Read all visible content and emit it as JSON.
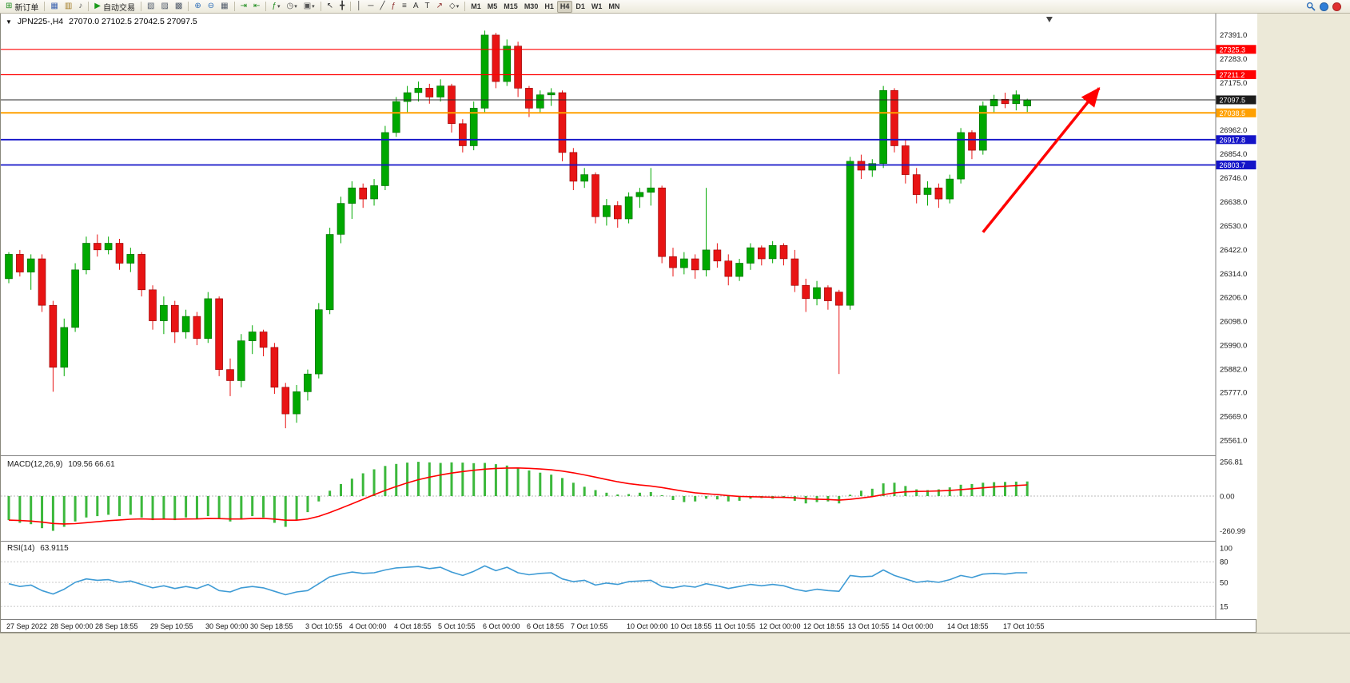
{
  "toolbar": {
    "groups": [
      [
        {
          "name": "new-order-button",
          "glyph": "⊞",
          "glyph_color": "#1a8a1a",
          "label": "新订单"
        }
      ],
      [
        {
          "name": "charts-icon",
          "glyph": "▦",
          "glyph_color": "#3a62b0"
        },
        {
          "name": "history-center-icon",
          "glyph": "▥",
          "glyph_color": "#a07820"
        },
        {
          "name": "sound-alert-icon",
          "glyph": "♪",
          "glyph_color": "#555555"
        }
      ],
      [
        {
          "name": "autotrading-button",
          "glyph": "▶",
          "glyph_color": "#1a9a1a",
          "label": "自动交易"
        }
      ],
      [
        {
          "name": "tile-windows-icon",
          "glyph": "▧",
          "glyph_color": "#505a6a"
        },
        {
          "name": "cascade-windows-icon",
          "glyph": "▨",
          "glyph_color": "#505a6a"
        },
        {
          "name": "arrange-windows-icon",
          "glyph": "▩",
          "glyph_color": "#505a6a"
        }
      ],
      [
        {
          "name": "zoom-in-icon",
          "glyph": "⊕",
          "glyph_color": "#2b6cb8"
        },
        {
          "name": "zoom-out-icon",
          "glyph": "⊖",
          "glyph_color": "#2b6cb8"
        },
        {
          "name": "tile-grid-icon",
          "glyph": "▦",
          "glyph_color": "#505a6a"
        }
      ],
      [
        {
          "name": "auto-scroll-icon",
          "glyph": "⇥",
          "glyph_color": "#1a8a1a"
        },
        {
          "name": "chart-shift-icon",
          "glyph": "⇤",
          "glyph_color": "#1a8a1a"
        }
      ],
      [
        {
          "name": "indicators-add-icon",
          "glyph": "ƒ",
          "glyph_color": "#1a8a1a",
          "dropdown": true
        },
        {
          "name": "periods-icon",
          "glyph": "◷",
          "glyph_color": "#555555",
          "dropdown": true
        },
        {
          "name": "templates-icon",
          "glyph": "▣",
          "glyph_color": "#555555",
          "dropdown": true
        }
      ],
      [
        {
          "name": "cursor-icon",
          "glyph": "↖",
          "glyph_color": "#333333"
        },
        {
          "name": "crosshair-icon",
          "glyph": "╋",
          "glyph_color": "#333333"
        }
      ],
      [
        {
          "name": "vertical-line-icon",
          "glyph": "│",
          "glyph_color": "#333333"
        },
        {
          "name": "horizontal-line-icon",
          "glyph": "─",
          "glyph_color": "#333333"
        },
        {
          "name": "trendline-icon",
          "glyph": "╱",
          "glyph_color": "#333333"
        },
        {
          "name": "fibonacci-icon",
          "glyph": "ƒ",
          "glyph_color": "#8a2a2a"
        },
        {
          "name": "channel-icon",
          "glyph": "≡",
          "glyph_color": "#333333"
        },
        {
          "name": "text-icon",
          "glyph": "A",
          "glyph_color": "#333333"
        },
        {
          "name": "text-label-icon",
          "glyph": "T",
          "glyph_color": "#333333"
        },
        {
          "name": "arrows-icon",
          "glyph": "↗",
          "glyph_color": "#8a2a2a"
        },
        {
          "name": "shapes-icon",
          "glyph": "◇",
          "glyph_color": "#333333",
          "dropdown": true
        }
      ],
      [
        {
          "name": "tf-m1",
          "label": "M1",
          "tf": true
        },
        {
          "name": "tf-m5",
          "label": "M5",
          "tf": true
        },
        {
          "name": "tf-m15",
          "label": "M15",
          "tf": true
        },
        {
          "name": "tf-m30",
          "label": "M30",
          "tf": true
        },
        {
          "name": "tf-h1",
          "label": "H1",
          "tf": true
        },
        {
          "name": "tf-h4",
          "label": "H4",
          "tf": true,
          "active": true
        },
        {
          "name": "tf-d1",
          "label": "D1",
          "tf": true
        },
        {
          "name": "tf-w1",
          "label": "W1",
          "tf": true
        },
        {
          "name": "tf-mn",
          "label": "MN",
          "tf": true
        }
      ]
    ],
    "right_icons": [
      {
        "name": "search-symbol-icon",
        "svg": "magnifier"
      },
      {
        "name": "community-icon",
        "dot": "#2F7ED8"
      },
      {
        "name": "live-update-icon",
        "dot": "#E03030"
      }
    ]
  },
  "chart_header": {
    "collapse_glyph": "▼",
    "symbol_period": "JPN225-,H4",
    "ohlc": "27070.0 27102.5 27042.5 27097.5"
  },
  "indicators": {
    "macd_title": "MACD(12,26,9)",
    "macd_values": "109.56 66.61",
    "rsi_title": "RSI(14)",
    "rsi_value": "63.9115"
  },
  "chart_data": [
    {
      "type": "candlestick",
      "symbol": "JPN225-",
      "period": "H4",
      "ylim": [
        25500,
        27440
      ],
      "up_color": "#00A800",
      "up_border": "#006600",
      "down_color": "#E81414",
      "down_border": "#8F0000",
      "y_axis_labels": [
        "27391.0",
        "27283.0",
        "27175.0",
        "26962.0",
        "26854.0",
        "26746.0",
        "26638.0",
        "26530.0",
        "26422.0",
        "26314.0",
        "26206.0",
        "26098.0",
        "25990.0",
        "25882.0",
        "25777.0",
        "25669.0",
        "25561.0"
      ],
      "levels": [
        {
          "price": 27325.3,
          "label": "27325.3",
          "color": "#FF0000",
          "width": 1.2
        },
        {
          "price": 27211.2,
          "label": "27211.2",
          "color": "#FF0000",
          "width": 1.2
        },
        {
          "price": 27097.5,
          "label": "27097.5",
          "color": "#2a2a2a",
          "width": 1,
          "role": "current-price"
        },
        {
          "price": 27038.5,
          "label": "27038.5",
          "color": "#FFA000",
          "width": 2
        },
        {
          "price": 26917.8,
          "label": "26917.8",
          "color": "#1414C8",
          "width": 1.8
        },
        {
          "price": 26803.7,
          "label": "26803.7",
          "color": "#1414C8",
          "width": 1.8
        }
      ],
      "candles": [
        [
          26290,
          26410,
          26270,
          26400
        ],
        [
          26400,
          26420,
          26300,
          26320
        ],
        [
          26320,
          26400,
          26240,
          26380
        ],
        [
          26380,
          26400,
          26140,
          26170
        ],
        [
          26170,
          26190,
          25780,
          25890
        ],
        [
          25890,
          26110,
          25850,
          26070
        ],
        [
          26070,
          26360,
          26050,
          26330
        ],
        [
          26330,
          26480,
          26310,
          26450
        ],
        [
          26450,
          26490,
          26390,
          26420
        ],
        [
          26420,
          26480,
          26400,
          26450
        ],
        [
          26450,
          26470,
          26330,
          26360
        ],
        [
          26360,
          26430,
          26320,
          26400
        ],
        [
          26400,
          26410,
          26210,
          26240
        ],
        [
          26240,
          26260,
          26060,
          26100
        ],
        [
          26100,
          26210,
          26040,
          26170
        ],
        [
          26170,
          26190,
          26000,
          26050
        ],
        [
          26050,
          26150,
          26020,
          26120
        ],
        [
          26120,
          26140,
          25990,
          26020
        ],
        [
          26020,
          26230,
          26000,
          26200
        ],
        [
          26200,
          26210,
          25850,
          25880
        ],
        [
          25880,
          25930,
          25760,
          25830
        ],
        [
          25830,
          26040,
          25800,
          26010
        ],
        [
          26010,
          26080,
          25950,
          26050
        ],
        [
          26050,
          26060,
          25940,
          25980
        ],
        [
          25980,
          26000,
          25770,
          25800
        ],
        [
          25800,
          25820,
          25615,
          25680
        ],
        [
          25680,
          25810,
          25640,
          25780
        ],
        [
          25780,
          25880,
          25740,
          25860
        ],
        [
          25860,
          26180,
          25840,
          26150
        ],
        [
          26150,
          26520,
          26130,
          26490
        ],
        [
          26490,
          26660,
          26450,
          26630
        ],
        [
          26630,
          26730,
          26560,
          26700
        ],
        [
          26700,
          26720,
          26610,
          26650
        ],
        [
          26650,
          26740,
          26620,
          26710
        ],
        [
          26710,
          26980,
          26690,
          26950
        ],
        [
          26950,
          27110,
          26930,
          27090
        ],
        [
          27090,
          27160,
          27040,
          27130
        ],
        [
          27130,
          27180,
          27090,
          27150
        ],
        [
          27150,
          27170,
          27080,
          27110
        ],
        [
          27110,
          27190,
          27090,
          27160
        ],
        [
          27160,
          27170,
          26950,
          26990
        ],
        [
          26990,
          27010,
          26860,
          26890
        ],
        [
          26890,
          27090,
          26870,
          27060
        ],
        [
          27060,
          27410,
          27040,
          27390
        ],
        [
          27390,
          27400,
          27150,
          27180
        ],
        [
          27180,
          27370,
          27160,
          27340
        ],
        [
          27340,
          27360,
          27110,
          27150
        ],
        [
          27150,
          27160,
          27020,
          27060
        ],
        [
          27060,
          27140,
          27040,
          27120
        ],
        [
          27120,
          27150,
          27070,
          27130
        ],
        [
          27130,
          27140,
          26820,
          26860
        ],
        [
          26860,
          26880,
          26690,
          26730
        ],
        [
          26730,
          26790,
          26700,
          26760
        ],
        [
          26760,
          26770,
          26540,
          26570
        ],
        [
          26570,
          26650,
          26530,
          26620
        ],
        [
          26620,
          26640,
          26520,
          26560
        ],
        [
          26560,
          26680,
          26540,
          26660
        ],
        [
          26660,
          26700,
          26610,
          26680
        ],
        [
          26680,
          26790,
          26620,
          26700
        ],
        [
          26700,
          26710,
          26360,
          26390
        ],
        [
          26390,
          26430,
          26300,
          26340
        ],
        [
          26340,
          26410,
          26310,
          26380
        ],
        [
          26380,
          26400,
          26290,
          26330
        ],
        [
          26330,
          26700,
          26300,
          26420
        ],
        [
          26420,
          26450,
          26340,
          26370
        ],
        [
          26370,
          26400,
          26260,
          26300
        ],
        [
          26300,
          26380,
          26280,
          26360
        ],
        [
          26360,
          26450,
          26330,
          26430
        ],
        [
          26430,
          26440,
          26350,
          26380
        ],
        [
          26380,
          26460,
          26360,
          26440
        ],
        [
          26440,
          26450,
          26350,
          26380
        ],
        [
          26380,
          26420,
          26230,
          26260
        ],
        [
          26260,
          26290,
          26140,
          26200
        ],
        [
          26200,
          26280,
          26170,
          26250
        ],
        [
          26250,
          26260,
          26150,
          26190
        ],
        [
          26230,
          26240,
          25860,
          26170
        ],
        [
          26170,
          26840,
          26150,
          26820
        ],
        [
          26820,
          26850,
          26740,
          26780
        ],
        [
          26780,
          26830,
          26750,
          26810
        ],
        [
          26810,
          27160,
          26790,
          27140
        ],
        [
          27140,
          27150,
          26860,
          26890
        ],
        [
          26890,
          26920,
          26720,
          26760
        ],
        [
          26760,
          26790,
          26630,
          26670
        ],
        [
          26670,
          26730,
          26620,
          26700
        ],
        [
          26700,
          26720,
          26610,
          26650
        ],
        [
          26650,
          26760,
          26630,
          26740
        ],
        [
          26740,
          26970,
          26720,
          26950
        ],
        [
          26950,
          26960,
          26830,
          26870
        ],
        [
          26870,
          27090,
          26850,
          27070
        ],
        [
          27070,
          27120,
          27040,
          27100
        ],
        [
          27100,
          27130,
          27060,
          27080
        ],
        [
          27080,
          27140,
          27050,
          27120
        ],
        [
          27070,
          27102.5,
          27042.5,
          27097.5
        ]
      ],
      "x_labels": [
        {
          "label": "27 Sep 2022",
          "bar": 0
        },
        {
          "label": "28 Sep 00:00",
          "bar": 4
        },
        {
          "label": "28 Sep 18:55",
          "bar": 8
        },
        {
          "label": "29 Sep 10:55",
          "bar": 13
        },
        {
          "label": "30 Sep 00:00",
          "bar": 18
        },
        {
          "label": "30 Sep 18:55",
          "bar": 22
        },
        {
          "label": "3 Oct 10:55",
          "bar": 27
        },
        {
          "label": "4 Oct 00:00",
          "bar": 31
        },
        {
          "label": "4 Oct 18:55",
          "bar": 35
        },
        {
          "label": "5 Oct 10:55",
          "bar": 39
        },
        {
          "label": "6 Oct 00:00",
          "bar": 43
        },
        {
          "label": "6 Oct 18:55",
          "bar": 47
        },
        {
          "label": "7 Oct 10:55",
          "bar": 51
        },
        {
          "label": "10 Oct 00:00",
          "bar": 56
        },
        {
          "label": "10 Oct 18:55",
          "bar": 60
        },
        {
          "label": "11 Oct 10:55",
          "bar": 64
        },
        {
          "label": "12 Oct 00:00",
          "bar": 68
        },
        {
          "label": "12 Oct 18:55",
          "bar": 72
        },
        {
          "label": "13 Oct 10:55",
          "bar": 76
        },
        {
          "label": "14 Oct 00:00",
          "bar": 80
        },
        {
          "label": "14 Oct 18:55",
          "bar": 85
        },
        {
          "label": "17 Oct 10:55",
          "bar": 90
        }
      ],
      "arrow": {
        "from_bar": 88,
        "from_price": 26500,
        "to_bar": 98.5,
        "to_price": 27150,
        "color": "#FF0000",
        "width": 3.5
      },
      "shift_marker_bar": 94
    },
    {
      "type": "bar",
      "name": "MACD(12,26,9)",
      "macd_current": 109.56,
      "signal_current": 66.61,
      "histogram_color": "#3CB83C",
      "signal_color": "#FF0000",
      "y_axis_labels": [
        "256.81",
        "0.00",
        "-260.99"
      ],
      "histogram": [
        -180,
        -200,
        -210,
        -240,
        -260,
        -230,
        -190,
        -160,
        -150,
        -140,
        -150,
        -140,
        -160,
        -180,
        -170,
        -180,
        -160,
        -170,
        -150,
        -170,
        -190,
        -170,
        -150,
        -160,
        -200,
        -230,
        -180,
        -120,
        -40,
        40,
        90,
        130,
        170,
        200,
        225,
        240,
        250,
        256,
        252,
        248,
        252,
        250,
        246,
        248,
        238,
        228,
        212,
        192,
        175,
        160,
        135,
        100,
        70,
        45,
        25,
        12,
        15,
        25,
        30,
        0,
        -30,
        -45,
        -40,
        -20,
        -25,
        -40,
        -35,
        -20,
        -15,
        -20,
        -15,
        -35,
        -55,
        -45,
        -40,
        -55,
        10,
        40,
        55,
        95,
        100,
        75,
        50,
        45,
        50,
        65,
        85,
        90,
        100,
        104,
        106,
        108,
        109.56
      ]
    },
    {
      "type": "line",
      "name": "RSI(14)",
      "current_value": 63.9115,
      "line_color": "#3E9BD5",
      "levels": [
        80,
        50,
        15
      ],
      "y_axis_labels": [
        "100",
        "80",
        "50",
        "15"
      ],
      "values": [
        48,
        44,
        46,
        38,
        33,
        40,
        50,
        55,
        53,
        54,
        50,
        52,
        47,
        42,
        45,
        41,
        44,
        41,
        47,
        38,
        36,
        42,
        44,
        42,
        37,
        32,
        36,
        38,
        48,
        58,
        62,
        65,
        63,
        64,
        68,
        71,
        72,
        73,
        70,
        72,
        65,
        60,
        66,
        74,
        67,
        72,
        64,
        61,
        63,
        64,
        55,
        51,
        53,
        46,
        49,
        47,
        51,
        52,
        53,
        44,
        42,
        45,
        43,
        48,
        45,
        41,
        44,
        47,
        45,
        47,
        45,
        40,
        37,
        40,
        38,
        37,
        60,
        58,
        59,
        68,
        60,
        55,
        50,
        52,
        50,
        54,
        60,
        57,
        62,
        63,
        62,
        64,
        63.91
      ]
    }
  ]
}
